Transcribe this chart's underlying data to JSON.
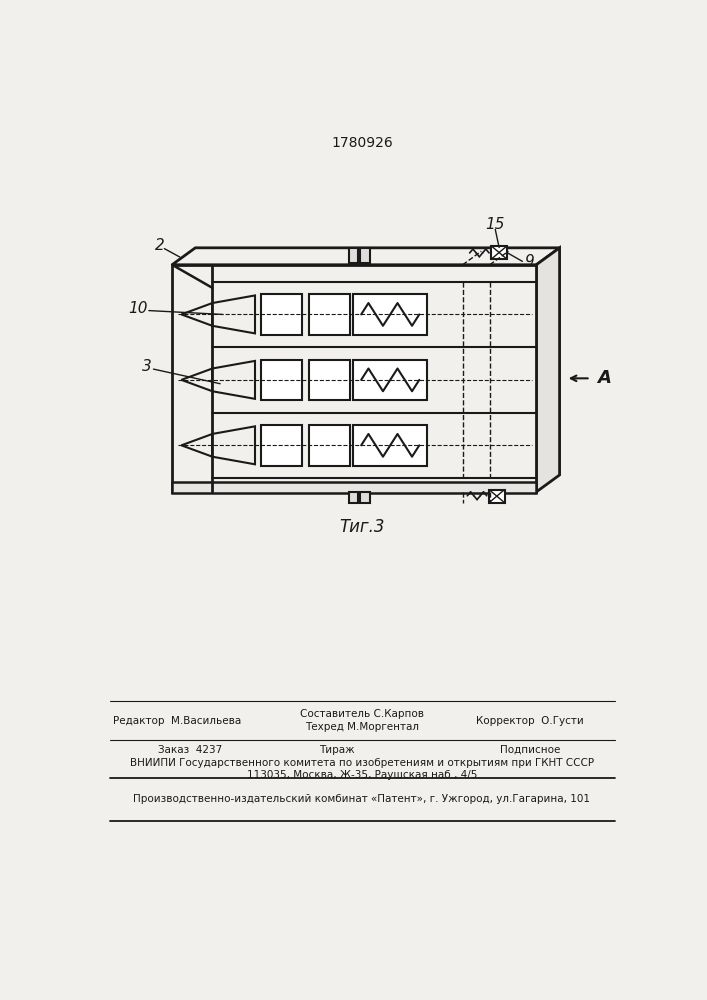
{
  "title": "1780926",
  "fig_label": "Τиг.3",
  "bg_color": "#f2f0ed",
  "line_color": "#1a1a1a",
  "label_2": "2",
  "label_3": "3",
  "label_9": "9",
  "label_10": "10",
  "label_15": "15",
  "label_A": "A",
  "footer_line1_left": "Редактор  М.Васильева",
  "footer_center_top": "Составитель С.Карпов",
  "footer_center_bot": "Техред М.Моргентал",
  "footer_line1_right": "Корректор  О.Густи",
  "footer_order": "Заказ  4237",
  "footer_tirazh": "Тираж",
  "footer_podp": "Подписное",
  "footer_line3": "ВНИИПИ Государственного комитета по изобретениям и открытиям при ГКНТ СССР",
  "footer_line4": "113035, Москва, Ж-35, Раушская наб., 4/5",
  "footer_line5": "Производственно-издательский комбинат «Патент», г. Ужгород, ул.Гагарина, 101"
}
